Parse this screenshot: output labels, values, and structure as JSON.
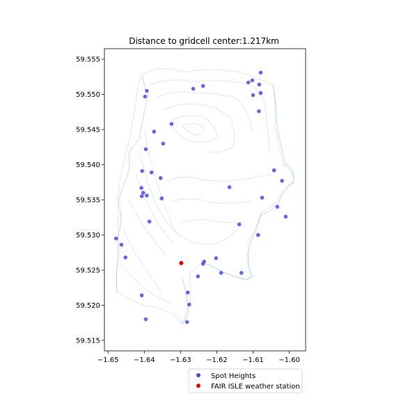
{
  "chart_data": {
    "type": "scatter",
    "title": "Distance to gridcell center:1.217km",
    "xlabel": "",
    "ylabel": "",
    "xlim": [
      -1.651,
      -1.5955
    ],
    "ylim": [
      59.5135,
      59.5565
    ],
    "x_ticks": [
      "−1.65",
      "−1.64",
      "−1.63",
      "−1.62",
      "−1.61",
      "−1.60"
    ],
    "x_tick_values": [
      -1.65,
      -1.64,
      -1.63,
      -1.62,
      -1.61,
      -1.6
    ],
    "y_ticks": [
      "59.515",
      "59.520",
      "59.525",
      "59.530",
      "59.535",
      "59.540",
      "59.545",
      "59.550",
      "59.555"
    ],
    "y_tick_values": [
      59.515,
      59.52,
      59.525,
      59.53,
      59.535,
      59.54,
      59.545,
      59.55,
      59.555
    ],
    "grid": false,
    "legend_position": "bottom-right",
    "series": [
      {
        "name": "Spot Heights",
        "color": "#4a4ae6",
        "points": [
          [
            -1.6079,
            59.5531
          ],
          [
            -1.6113,
            59.5517
          ],
          [
            -1.6102,
            59.552
          ],
          [
            -1.6083,
            59.5514
          ],
          [
            -1.6079,
            59.5502
          ],
          [
            -1.61,
            59.5499
          ],
          [
            -1.6238,
            59.5512
          ],
          [
            -1.6265,
            59.5508
          ],
          [
            -1.6393,
            59.5505
          ],
          [
            -1.6398,
            59.5497
          ],
          [
            -1.6084,
            59.5476
          ],
          [
            -1.6325,
            59.5458
          ],
          [
            -1.6373,
            59.5447
          ],
          [
            -1.6348,
            59.543
          ],
          [
            -1.6396,
            59.5422
          ],
          [
            -1.638,
            59.5389
          ],
          [
            -1.6406,
            59.5391
          ],
          [
            -1.6355,
            59.5381
          ],
          [
            -1.6352,
            59.5352
          ],
          [
            -1.6165,
            59.5368
          ],
          [
            -1.6042,
            59.5392
          ],
          [
            -1.602,
            59.5377
          ],
          [
            -1.6075,
            59.5353
          ],
          [
            -1.6408,
            59.5367
          ],
          [
            -1.6403,
            59.536
          ],
          [
            -1.6407,
            59.5355
          ],
          [
            -1.6393,
            59.5356
          ],
          [
            -1.6386,
            59.5319
          ],
          [
            -1.6033,
            59.534
          ],
          [
            -1.601,
            59.5326
          ],
          [
            -1.6138,
            59.5315
          ],
          [
            -1.6086,
            59.53
          ],
          [
            -1.6478,
            59.5295
          ],
          [
            -1.6463,
            59.5286
          ],
          [
            -1.6452,
            59.5268
          ],
          [
            -1.6235,
            59.5262
          ],
          [
            -1.6238,
            59.5259
          ],
          [
            -1.6202,
            59.5267
          ],
          [
            -1.6188,
            59.5246
          ],
          [
            -1.6132,
            59.5246
          ],
          [
            -1.6252,
            59.5241
          ],
          [
            -1.628,
            59.5218
          ],
          [
            -1.6276,
            59.5201
          ],
          [
            -1.6282,
            59.5176
          ],
          [
            -1.6407,
            59.5214
          ],
          [
            -1.6396,
            59.518
          ]
        ]
      },
      {
        "name": "FAIR ISLE weather station",
        "color": "#e60000",
        "points": [
          [
            -1.6298,
            59.526
          ]
        ]
      }
    ]
  }
}
